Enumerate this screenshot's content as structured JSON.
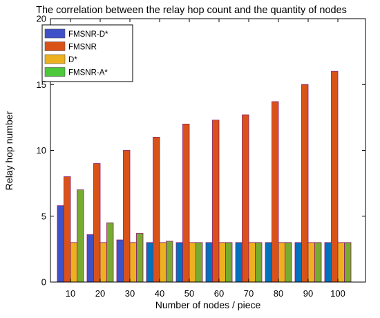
{
  "chart_data": {
    "type": "bar",
    "title": "The correlation between the relay hop count and the quantity of nodes",
    "xlabel": "Number of nodes / piece",
    "ylabel": "Relay hop number",
    "categories": [
      "10",
      "20",
      "30",
      "40",
      "50",
      "60",
      "70",
      "80",
      "90",
      "100"
    ],
    "ylim": [
      0,
      20
    ],
    "yticks": [
      0,
      5,
      10,
      15,
      20
    ],
    "grid": false,
    "legend_position": "top-left",
    "series": [
      {
        "name": "FMSNR-D*",
        "color": "#3f51c8",
        "alt_color": "#0072bd",
        "values": [
          5.8,
          3.6,
          3.2,
          3.0,
          3.0,
          3.0,
          3.0,
          3.0,
          3.0,
          3.0
        ]
      },
      {
        "name": "FMSNR",
        "color": "#d95319",
        "values": [
          8.0,
          9.0,
          10.0,
          11.0,
          12.0,
          12.3,
          12.7,
          13.7,
          15.0,
          16.0
        ]
      },
      {
        "name": "D*",
        "color": "#edb120",
        "values": [
          3.0,
          3.0,
          3.0,
          3.0,
          3.0,
          3.0,
          3.0,
          3.0,
          3.0,
          3.0
        ]
      },
      {
        "name": "FMSNR-A*",
        "color": "#77ac30",
        "legend_color": "#4dc83a",
        "values": [
          7.0,
          4.5,
          3.7,
          3.1,
          3.0,
          3.0,
          3.0,
          3.0,
          3.0,
          3.0
        ]
      }
    ]
  }
}
